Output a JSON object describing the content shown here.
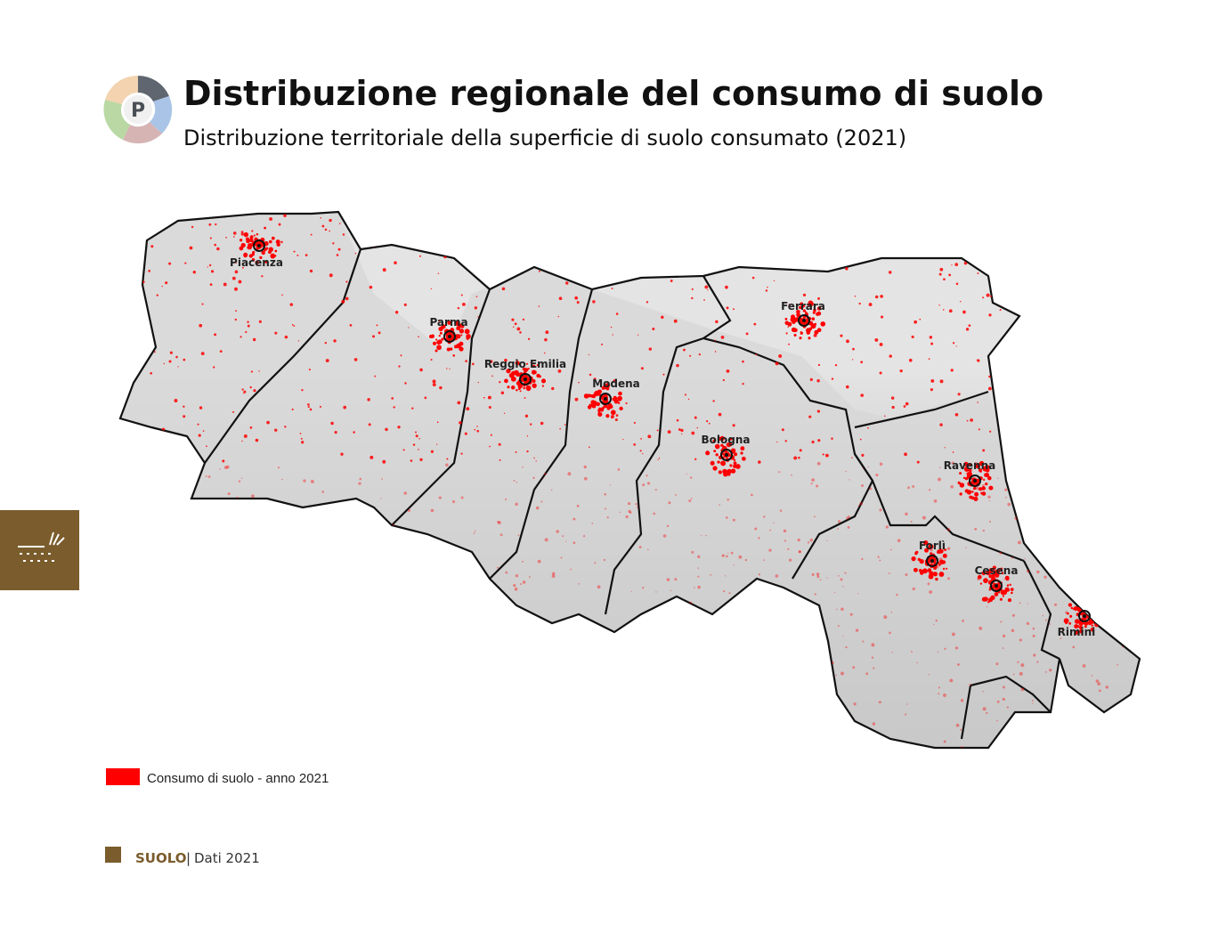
{
  "header": {
    "icon_letter": "P",
    "title": "Distribuzione regionale del consumo di suolo",
    "subtitle": "Distribuzione territoriale della superficie di suolo consumato (2021)"
  },
  "map": {
    "cities": [
      {
        "label": "Piacenza"
      },
      {
        "label": "Parma"
      },
      {
        "label": "Reggio Emilia"
      },
      {
        "label": "Modena"
      },
      {
        "label": "Bologna"
      },
      {
        "label": "Ferrara"
      },
      {
        "label": "Ravenna"
      },
      {
        "label": "Forlì"
      },
      {
        "label": "Cesena"
      },
      {
        "label": "Rimini"
      }
    ],
    "legend": {
      "label": "Consumo di suolo - anno 2021",
      "color": "#ff0000"
    }
  },
  "footer": {
    "section": "SUOLO",
    "separator": "|",
    "text": "Dati 2021"
  }
}
